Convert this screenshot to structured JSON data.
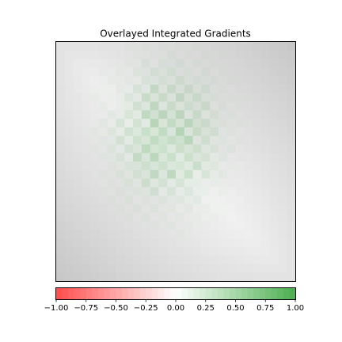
{
  "chart_data": {
    "type": "heatmap",
    "title": "Overlayed Integrated Gradients",
    "grid": false,
    "description_overlay": "grayscale image with diverging red-white-green attribution overlay",
    "colorbar": {
      "orientation": "horizontal",
      "position": "bottom",
      "vmin": -1.0,
      "vmax": 1.0,
      "colors": {
        "negative": "#ff4d4d",
        "center": "#ffffff",
        "positive": "#4caf50"
      },
      "ticks": [
        -1.0,
        -0.75,
        -0.5,
        -0.25,
        0.0,
        0.25,
        0.5,
        0.75,
        1.0
      ],
      "tick_labels": [
        "−1.00",
        "−0.75",
        "−0.50",
        "−0.25",
        "0.00",
        "0.25",
        "0.50",
        "0.75",
        "1.00"
      ]
    },
    "image_grid": {
      "rows": 28,
      "cols": 28
    }
  }
}
